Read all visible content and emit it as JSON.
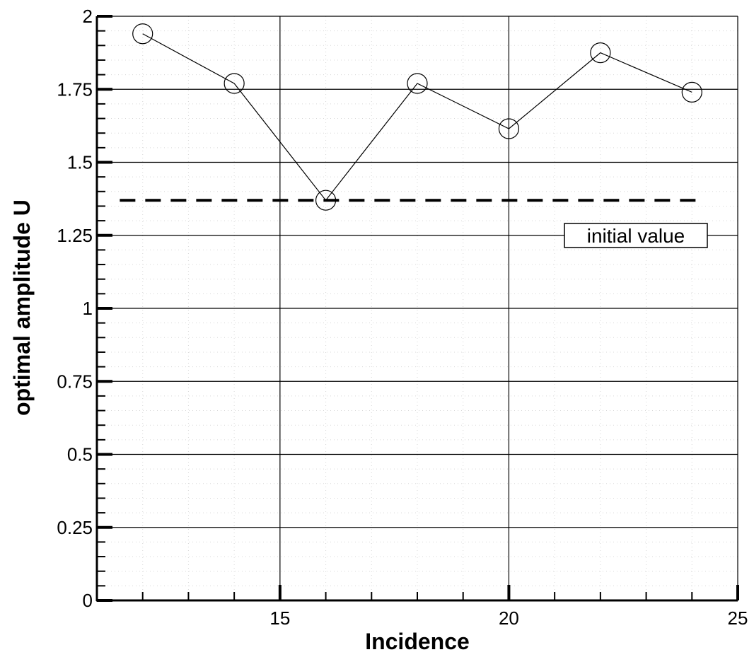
{
  "chart_data": {
    "type": "line",
    "title": "",
    "xlabel": "Incidence",
    "ylabel": "optimal amplitude U",
    "xlim": [
      11,
      25
    ],
    "ylim": [
      0,
      2
    ],
    "x_ticks": [
      15,
      20,
      25
    ],
    "y_ticks": [
      0,
      0.25,
      0.5,
      0.75,
      1,
      1.25,
      1.5,
      1.75,
      2
    ],
    "x_tick_labels": [
      "15",
      "20",
      "25"
    ],
    "y_tick_labels": [
      "0",
      "0.25",
      "0.5",
      "0.75",
      "1",
      "1.25",
      "1.5",
      "1.75",
      "2"
    ],
    "grid": true,
    "series": [
      {
        "x": [
          12,
          14,
          16,
          18,
          20,
          22,
          24
        ],
        "y": [
          1.94,
          1.77,
          1.37,
          1.77,
          1.615,
          1.875,
          1.74
        ],
        "marker": "circle-open",
        "line": "solid",
        "color": "#000000"
      }
    ],
    "reference_line": {
      "y": 1.37,
      "x_range": [
        11.5,
        24.1
      ],
      "style": "dashed",
      "label": "initial value"
    }
  }
}
